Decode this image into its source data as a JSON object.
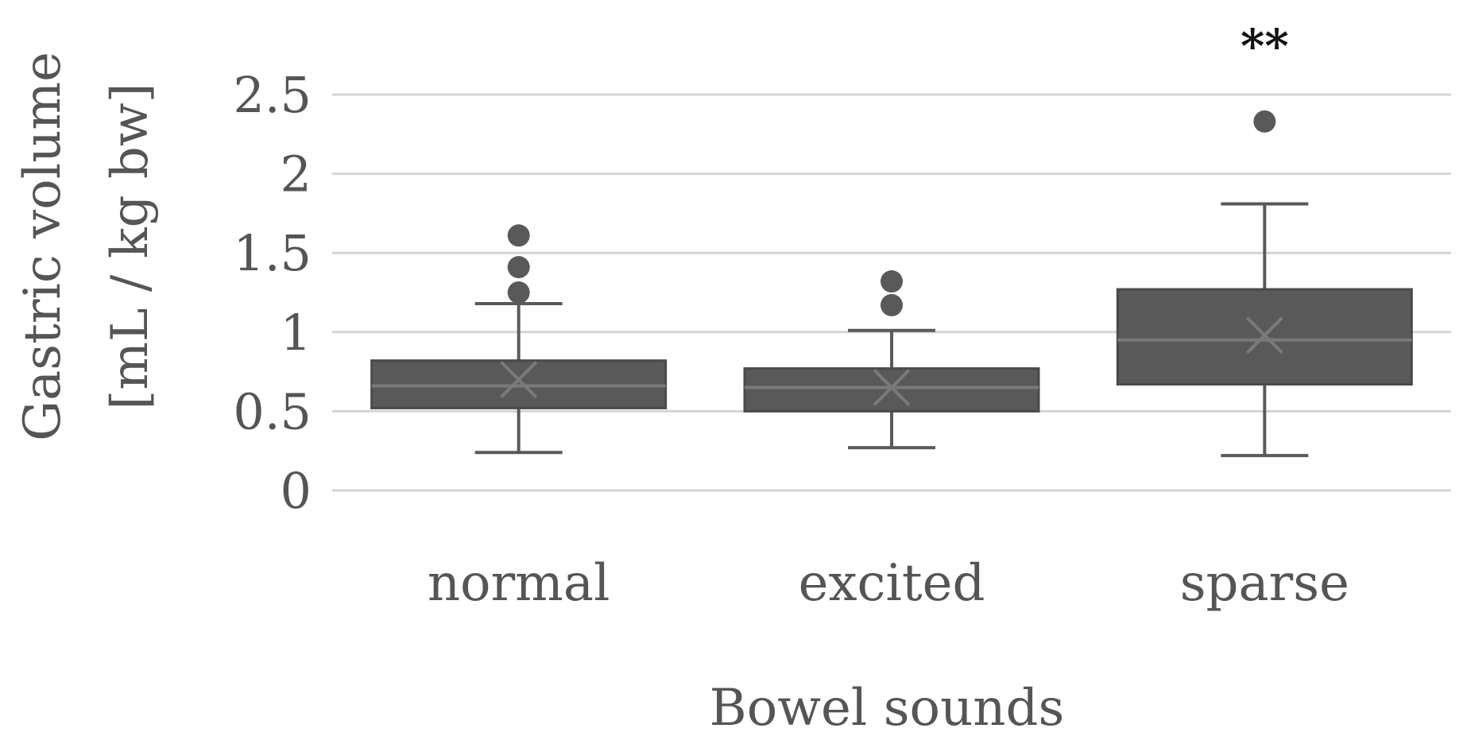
{
  "chart_data": {
    "type": "box",
    "xlabel": "Bowel sounds",
    "ylabel": [
      "Gastric volume",
      "[mL / kg bw]"
    ],
    "ylim": [
      0,
      2.5
    ],
    "yticks": [
      "0",
      "0.5",
      "1",
      "1.5",
      "2",
      "2.5"
    ],
    "grid": true,
    "box_color": "#595959",
    "categories": [
      "normal",
      "excited",
      "sparse"
    ],
    "series": [
      {
        "category": "normal",
        "min": 0.24,
        "q1": 0.52,
        "median": 0.66,
        "mean": 0.7,
        "q3": 0.82,
        "max": 1.18,
        "outliers": [
          1.25,
          1.41,
          1.61
        ],
        "annotation": ""
      },
      {
        "category": "excited",
        "min": 0.27,
        "q1": 0.5,
        "median": 0.65,
        "mean": 0.65,
        "q3": 0.77,
        "max": 1.01,
        "outliers": [
          1.17,
          1.32
        ],
        "annotation": ""
      },
      {
        "category": "sparse",
        "min": 0.22,
        "q1": 0.67,
        "median": 0.95,
        "mean": 0.98,
        "q3": 1.27,
        "max": 1.81,
        "outliers": [
          2.33
        ],
        "annotation": "**"
      }
    ]
  }
}
